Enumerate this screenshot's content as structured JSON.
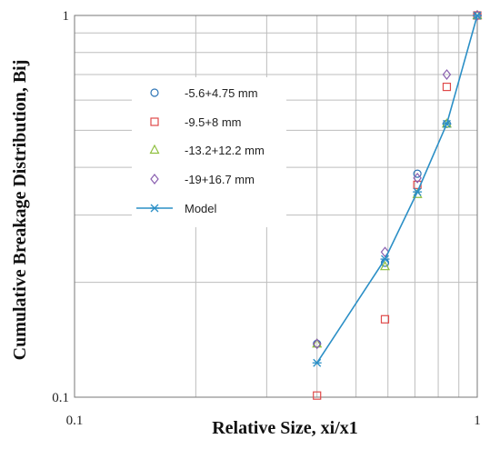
{
  "chart_data": {
    "type": "scatter",
    "xlabel": "Relative Size, xi/x1",
    "ylabel": "Cumulative Breakage Distribution, Bij",
    "xscale": "log",
    "yscale": "log",
    "xlim": [
      0.1,
      1
    ],
    "ylim": [
      0.1,
      1
    ],
    "x_ticks": [
      "0.1",
      "1"
    ],
    "y_ticks": [
      "0.1",
      "1"
    ],
    "grid": true,
    "legend_position": "left-center",
    "series": [
      {
        "name": "-5.6+4.75 mm",
        "marker": "circle",
        "color": "#2e75b6",
        "points": [
          [
            0.4,
            0.138
          ],
          [
            0.59,
            0.225
          ],
          [
            0.71,
            0.385
          ],
          [
            0.84,
            0.52
          ],
          [
            1.0,
            1.0
          ]
        ]
      },
      {
        "name": "-9.5+8 mm",
        "marker": "square",
        "color": "#e04a4a",
        "points": [
          [
            0.4,
            0.101
          ],
          [
            0.59,
            0.16
          ],
          [
            0.71,
            0.36
          ],
          [
            0.84,
            0.65
          ],
          [
            1.0,
            1.0
          ]
        ]
      },
      {
        "name": "-13.2+12.2 mm",
        "marker": "triangle",
        "color": "#8fbf3f",
        "points": [
          [
            0.4,
            0.138
          ],
          [
            0.59,
            0.22
          ],
          [
            0.71,
            0.34
          ],
          [
            0.84,
            0.52
          ],
          [
            1.0,
            1.0
          ]
        ]
      },
      {
        "name": "-19+16.7 mm",
        "marker": "diamond",
        "color": "#8a5fb0",
        "points": [
          [
            0.4,
            0.138
          ],
          [
            0.59,
            0.24
          ],
          [
            0.71,
            0.375
          ],
          [
            0.84,
            0.7
          ],
          [
            1.0,
            1.0
          ]
        ]
      },
      {
        "name": "Model",
        "marker": "asterisk-line",
        "color": "#2b8fc6",
        "points": [
          [
            0.4,
            0.123
          ],
          [
            0.59,
            0.23
          ],
          [
            0.71,
            0.345
          ],
          [
            0.84,
            0.52
          ],
          [
            1.0,
            1.0
          ]
        ]
      }
    ]
  }
}
